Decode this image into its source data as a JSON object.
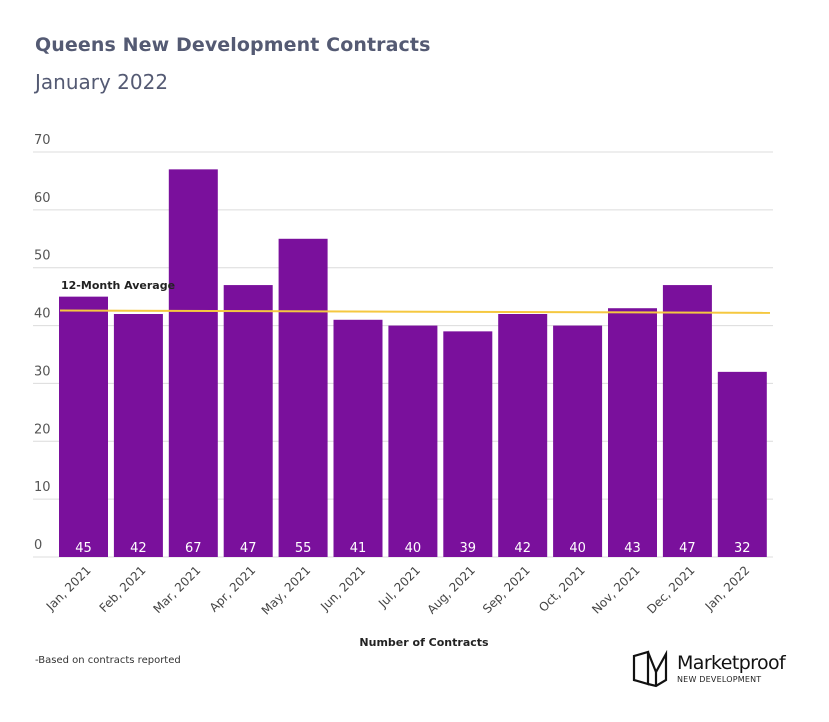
{
  "header": {
    "title": "Queens New Development Contracts",
    "subtitle": "January 2022"
  },
  "chart_data": {
    "type": "bar",
    "title": "Queens New Development Contracts",
    "subtitle": "January 2022",
    "xlabel": "Number of Contracts",
    "ylabel": "",
    "categories": [
      "Jan, 2021",
      "Feb, 2021",
      "Mar, 2021",
      "Apr, 2021",
      "May, 2021",
      "Jun, 2021",
      "Jul, 2021",
      "Aug, 2021",
      "Sep, 2021",
      "Oct, 2021",
      "Nov, 2021",
      "Dec, 2021",
      "Jan, 2022"
    ],
    "values": [
      45,
      42,
      67,
      47,
      55,
      41,
      40,
      39,
      42,
      40,
      43,
      47,
      32
    ],
    "ylim": [
      0,
      70
    ],
    "yticks": [
      0,
      10,
      20,
      30,
      40,
      50,
      60,
      70
    ],
    "grid": true,
    "bar_color": "#7a109c",
    "reference_line": {
      "label": "12-Month Average",
      "start_value": 42.6,
      "end_value": 42.2,
      "color": "#f5c840"
    }
  },
  "footer": {
    "footnote": "-Based on contracts reported",
    "brand_name": "Marketproof",
    "brand_sub": "NEW DEVELOPMENT"
  }
}
